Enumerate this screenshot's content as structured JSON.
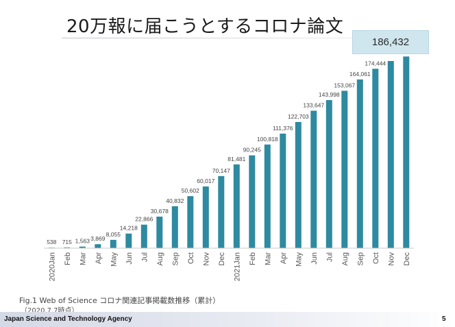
{
  "slide": {
    "title": "20万報に届こうとするコロナ論文",
    "callout": "186,432",
    "caption": "Fig.1 Web of Science コロナ関連記事掲載数推移（累計）",
    "caption_sub": "（2020.7.7時点）",
    "footer": "Japan Science and Technology Agency",
    "page_number": "5"
  },
  "chart_data": {
    "type": "bar",
    "categories": [
      "2020Jan",
      "Feb",
      "Mar",
      "Apr",
      "May",
      "Jun",
      "Jul",
      "Aug",
      "Sep",
      "Oct",
      "Nov",
      "Dec",
      "2021Jan",
      "Feb",
      "Mar",
      "Apr",
      "May",
      "Jun",
      "Jul",
      "Aug",
      "Sep",
      "Oct",
      "Nov",
      "Dec"
    ],
    "values": [
      538,
      715,
      1563,
      3869,
      8055,
      14218,
      22866,
      30678,
      40832,
      50602,
      60017,
      70147,
      81481,
      90245,
      100818,
      111376,
      122703,
      133647,
      143998,
      153067,
      164061,
      174444,
      182000,
      186432
    ],
    "data_labels": [
      "538",
      "715",
      "1,563",
      "3,869",
      "8,055",
      "14,218",
      "22,866",
      "30,678",
      "40,832",
      "50,602",
      "60,017",
      "70,147",
      "81,481",
      "90,245",
      "100,818",
      "111,376",
      "122,703",
      "133,647",
      "143,998",
      "153,067",
      "164,061",
      "174,444",
      "",
      ""
    ],
    "ylim": [
      0,
      190000
    ],
    "bar_color": "#2e8aa0",
    "grid": false
  }
}
